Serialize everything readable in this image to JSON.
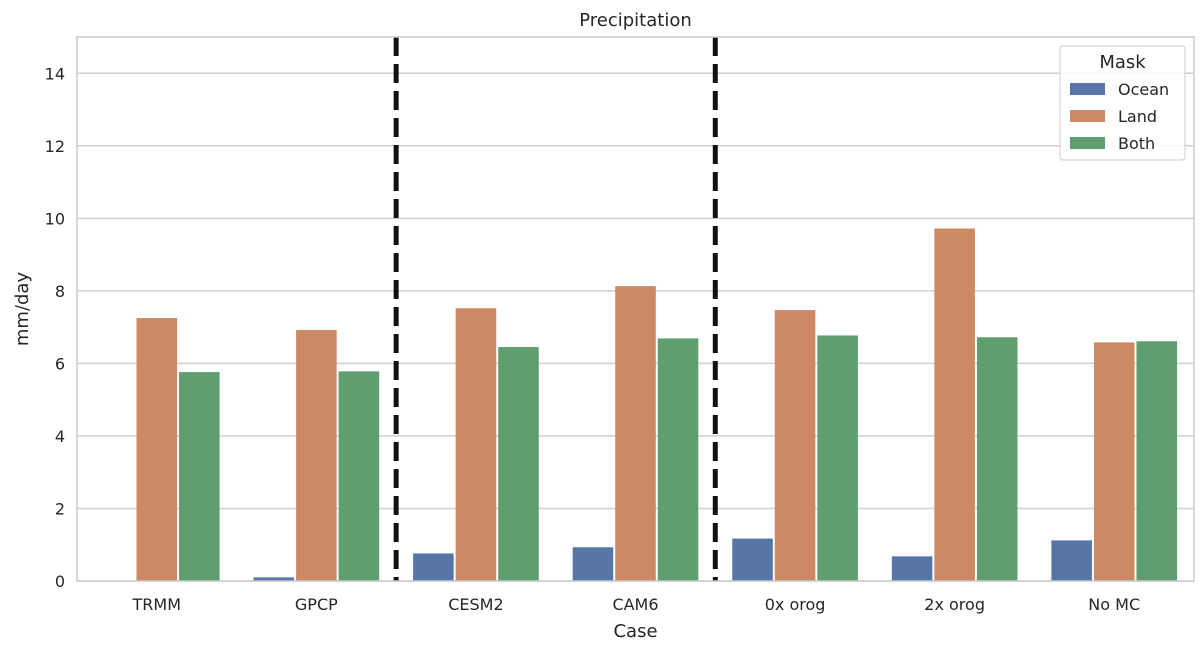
{
  "chart_data": {
    "type": "bar",
    "title": "Precipitation",
    "xlabel": "Case",
    "ylabel": "mm/day",
    "ylim": [
      0,
      15
    ],
    "yticks": [
      0,
      2,
      4,
      6,
      8,
      10,
      12,
      14
    ],
    "categories": [
      "TRMM",
      "GPCP",
      "CESM2",
      "CAM6",
      "0x orog",
      "2x orog",
      "No MC"
    ],
    "series": [
      {
        "name": "Ocean",
        "color": "#5875a8",
        "values": [
          0.0,
          0.1,
          0.76,
          0.93,
          1.17,
          0.68,
          1.12
        ]
      },
      {
        "name": "Land",
        "color": "#cc8963",
        "values": [
          7.25,
          6.92,
          7.52,
          8.13,
          7.47,
          9.72,
          6.58
        ]
      },
      {
        "name": "Both",
        "color": "#5f9e6e",
        "values": [
          5.76,
          5.78,
          6.45,
          6.69,
          6.77,
          6.72,
          6.61
        ]
      }
    ],
    "legend": {
      "title": "Mask",
      "position": "top-right"
    },
    "grid": "y",
    "separators_after_category": [
      1,
      3
    ]
  }
}
